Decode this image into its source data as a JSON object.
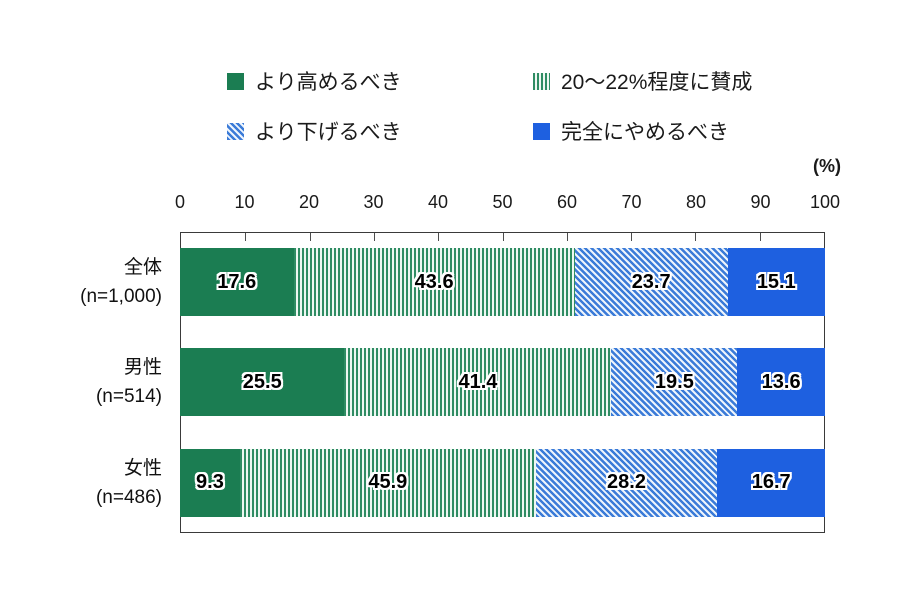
{
  "chart_data": {
    "type": "bar",
    "orientation": "horizontal",
    "stacked": true,
    "unit_label": "(%)",
    "xlim": [
      0,
      100
    ],
    "x_ticks": [
      "0",
      "10",
      "20",
      "30",
      "40",
      "50",
      "60",
      "70",
      "80",
      "90",
      "100"
    ],
    "grid": false,
    "legend_position": "top",
    "categories": [
      "全体",
      "男性",
      "女性"
    ],
    "category_sublabels": [
      "(n=1,000)",
      "(n=514)",
      "(n=486)"
    ],
    "series": [
      {
        "name": "より高めるべき",
        "fill": "solid-green",
        "color": "#1b7d52",
        "values": [
          17.6,
          25.5,
          9.3
        ]
      },
      {
        "name": "20〜22%程度に賛成",
        "fill": "green-vertical-stripes",
        "color": "#2f8c63",
        "values": [
          43.6,
          41.4,
          45.9
        ]
      },
      {
        "name": "より下げるべき",
        "fill": "blue-diagonal-stripes",
        "color": "#3b7bd8",
        "values": [
          23.7,
          19.5,
          28.2
        ]
      },
      {
        "name": "完全にやめるべき",
        "fill": "solid-blue",
        "color": "#1e60e0",
        "values": [
          15.1,
          13.6,
          16.7
        ]
      }
    ]
  }
}
